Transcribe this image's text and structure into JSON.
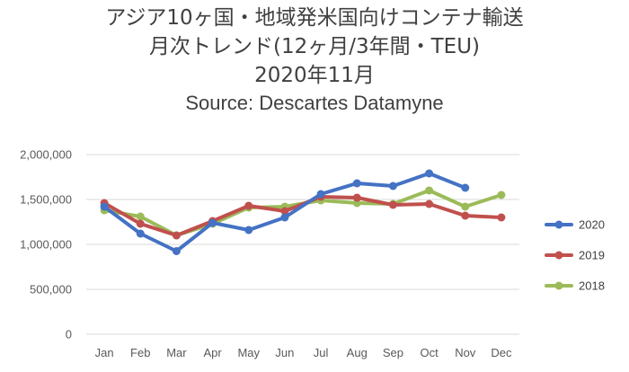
{
  "title_lines": [
    "アジア10ヶ国・地域発米国向けコンテナ輸送",
    "月次トレンド(12ヶ月/3年間・TEU)",
    "2020年11月"
  ],
  "subtitle": "Source: Descartes Datamyne",
  "chart_data": {
    "type": "line",
    "title": "アジア10ヶ国・地域発米国向けコンテナ輸送 月次トレンド(12ヶ月/3年間・TEU) 2020年11月",
    "subtitle": "Source: Descartes Datamyne",
    "categories": [
      "Jan",
      "Feb",
      "Mar",
      "Apr",
      "May",
      "Jun",
      "Jul",
      "Aug",
      "Sep",
      "Oct",
      "Nov",
      "Dec"
    ],
    "ylim": [
      0,
      2000000
    ],
    "y_ticks": [
      0,
      500000,
      1000000,
      1500000,
      2000000
    ],
    "y_tick_labels": [
      "0",
      "500,000",
      "1,000,000",
      "1,500,000",
      "2,000,000"
    ],
    "grid": "horizontal",
    "legend_position": "right",
    "series": [
      {
        "name": "2020",
        "color": "#4472C4",
        "values": [
          1420000,
          1120000,
          925000,
          1240000,
          1160000,
          1300000,
          1560000,
          1680000,
          1650000,
          1790000,
          1630000,
          null
        ]
      },
      {
        "name": "2019",
        "color": "#C0504D",
        "values": [
          1460000,
          1230000,
          1100000,
          1260000,
          1430000,
          1370000,
          1530000,
          1520000,
          1440000,
          1450000,
          1320000,
          1300000
        ]
      },
      {
        "name": "2018",
        "color": "#9BBB59",
        "values": [
          1380000,
          1310000,
          1100000,
          1230000,
          1410000,
          1420000,
          1490000,
          1460000,
          1450000,
          1600000,
          1420000,
          1550000
        ]
      }
    ]
  }
}
